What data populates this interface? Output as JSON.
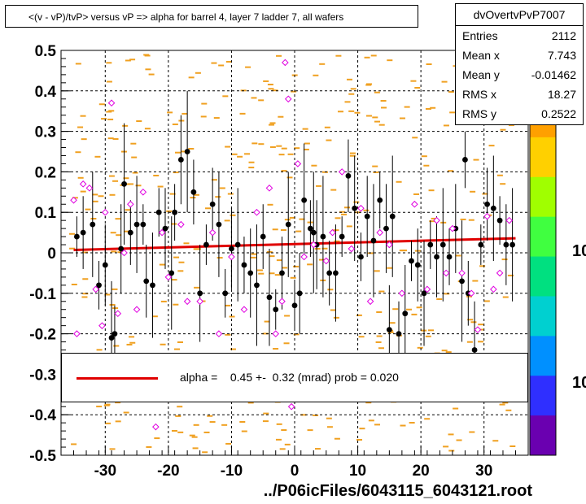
{
  "title": "<(v - vP)/tvP> versus   vP => alpha for barrel 4, layer 7 ladder 7, all wafers",
  "stats": {
    "name": "dvOvertvPvP7007",
    "rows": [
      {
        "key": "Entries",
        "value": "2112"
      },
      {
        "key": "Mean x",
        "value": "7.743"
      },
      {
        "key": "Mean y",
        "value": "-0.01462"
      },
      {
        "key": "RMS x",
        "value": "18.27"
      },
      {
        "key": "RMS y",
        "value": "0.2522"
      }
    ]
  },
  "fit": {
    "text": "alpha =    0.45 +-  0.32 (mrad) prob = 0.020",
    "line_color": "#e00000"
  },
  "footer": "../P06icFiles/6043115_6043121.root",
  "palette_labels": [
    "10",
    "10"
  ],
  "colors": {
    "hist": "#f0a020",
    "profile": "#000000",
    "open_marker": "#e000e0",
    "fit": "#e00000",
    "grid": "#000000"
  },
  "chart_data": {
    "type": "scatter",
    "xlim": [
      -37,
      37
    ],
    "ylim": [
      -0.5,
      0.5
    ],
    "x_ticks": [
      -30,
      -20,
      -10,
      0,
      10,
      20,
      30
    ],
    "x_tick_labels": [
      "-30",
      "-20",
      "-10",
      "0",
      "10",
      "20",
      "30"
    ],
    "y_ticks": [
      0.5,
      0.4,
      0.3,
      0.2,
      0.1,
      0,
      -0.1,
      -0.2,
      -0.3,
      -0.4,
      -0.5
    ],
    "y_tick_labels": [
      "0.5",
      "0.4",
      "0.3",
      "0.2",
      "0.1",
      "0",
      "-0.1",
      "-0.2",
      "-0.3",
      "-0.4",
      "-0.5"
    ],
    "grid": true,
    "fit_line": {
      "x": [
        -35,
        35
      ],
      "y": [
        0.007,
        0.036
      ]
    },
    "series": [
      {
        "marker": "filled-circle",
        "points": [
          [
            -34.5,
            0.04
          ],
          [
            -33.5,
            0.05
          ],
          [
            -32,
            0.07
          ],
          [
            -31,
            -0.08
          ],
          [
            -30,
            -0.03
          ],
          [
            -29,
            -0.21
          ],
          [
            -28.5,
            -0.2
          ],
          [
            -27.5,
            0.01
          ],
          [
            -27,
            0.17
          ],
          [
            -26,
            0.05
          ],
          [
            -25,
            0.07
          ],
          [
            -24,
            0.07
          ],
          [
            -23.5,
            -0.07
          ],
          [
            -22.5,
            -0.08
          ],
          [
            -21.5,
            0.1
          ],
          [
            -20.5,
            0.06
          ],
          [
            -19.5,
            -0.05
          ],
          [
            -19,
            0.1
          ],
          [
            -18,
            0.23
          ],
          [
            -17,
            0.25
          ],
          [
            -16,
            0.15
          ],
          [
            -15,
            -0.1
          ],
          [
            -14,
            0.02
          ],
          [
            -13,
            0.12
          ],
          [
            -12,
            0.07
          ],
          [
            -11,
            -0.1
          ],
          [
            -10,
            0.01
          ],
          [
            -9,
            0.02
          ],
          [
            -8,
            -0.03
          ],
          [
            -7,
            -0.05
          ],
          [
            -6,
            -0.08
          ],
          [
            -5,
            0.04
          ],
          [
            -4,
            -0.11
          ],
          [
            -3,
            -0.14
          ],
          [
            -2,
            -0.05
          ],
          [
            -1,
            0.07
          ],
          [
            0,
            -0.13
          ],
          [
            0.8,
            -0.1
          ],
          [
            1.5,
            0.13
          ],
          [
            2.5,
            0.06
          ],
          [
            3.5,
            0.02
          ],
          [
            4.5,
            0.04
          ],
          [
            5.5,
            -0.05
          ],
          [
            6.5,
            -0.05
          ],
          [
            7.5,
            0.04
          ],
          [
            8.5,
            0.19
          ],
          [
            9.5,
            0.11
          ],
          [
            10.5,
            -0.01
          ],
          [
            11.5,
            0.09
          ],
          [
            12.5,
            0.03
          ],
          [
            13.5,
            0.13
          ],
          [
            14.5,
            0.06
          ],
          [
            15.5,
            0.09
          ],
          [
            16.5,
            -0.2
          ],
          [
            17.5,
            -0.15
          ],
          [
            18.5,
            -0.02
          ],
          [
            19.5,
            -0.03
          ],
          [
            20.5,
            -0.1
          ],
          [
            21.5,
            0.02
          ],
          [
            22.5,
            -0.01
          ],
          [
            23.5,
            0.02
          ],
          [
            24.5,
            -0.01
          ],
          [
            25.5,
            0.06
          ],
          [
            26.5,
            -0.07
          ],
          [
            27.5,
            -0.1
          ],
          [
            28.5,
            -0.24
          ],
          [
            29.5,
            0.02
          ],
          [
            30.5,
            0.12
          ],
          [
            31.5,
            0.11
          ],
          [
            32.5,
            0.08
          ],
          [
            33.5,
            0.02
          ],
          [
            34.5,
            0.02
          ],
          [
            27,
            0.23
          ],
          [
            15,
            -0.19
          ],
          [
            3,
            0.05
          ]
        ]
      },
      {
        "marker": "open-diamond",
        "points": [
          [
            -35,
            0.13
          ],
          [
            -34.5,
            -0.2
          ],
          [
            -33.5,
            0.17
          ],
          [
            -32.5,
            0.16
          ],
          [
            -31.5,
            -0.09
          ],
          [
            -30.5,
            -0.18
          ],
          [
            -30,
            0.1
          ],
          [
            -29,
            0.37
          ],
          [
            -28,
            -0.15
          ],
          [
            -27,
            0.0
          ],
          [
            -26,
            0.12
          ],
          [
            -25,
            -0.14
          ],
          [
            -24,
            0.15
          ],
          [
            -22,
            -0.43
          ],
          [
            -21,
            0.05
          ],
          [
            -20,
            -0.06
          ],
          [
            -18,
            0.07
          ],
          [
            -17,
            -0.12
          ],
          [
            -15,
            -0.12
          ],
          [
            -13,
            0.05
          ],
          [
            -12,
            -0.2
          ],
          [
            -10,
            -0.01
          ],
          [
            -8,
            -0.14
          ],
          [
            -6,
            0.1
          ],
          [
            -4,
            0.16
          ],
          [
            -3,
            -0.2
          ],
          [
            -2,
            -0.12
          ],
          [
            -1.5,
            0.47
          ],
          [
            -1,
            0.38
          ],
          [
            -0.5,
            -0.38
          ],
          [
            0.5,
            0.22
          ],
          [
            1.5,
            -0.01
          ],
          [
            3,
            0.02
          ],
          [
            5,
            -0.02
          ],
          [
            6,
            0.05
          ],
          [
            7.5,
            0.2
          ],
          [
            9,
            0.01
          ],
          [
            10.5,
            0.11
          ],
          [
            12,
            -0.12
          ],
          [
            13.5,
            0.05
          ],
          [
            15,
            0.02
          ],
          [
            17,
            -0.1
          ],
          [
            19,
            0.12
          ],
          [
            21,
            -0.09
          ],
          [
            22.5,
            0.08
          ],
          [
            24,
            -0.05
          ],
          [
            25,
            0.06
          ],
          [
            26.5,
            -0.05
          ],
          [
            28,
            -0.1
          ],
          [
            29,
            -0.19
          ],
          [
            30.5,
            0.09
          ],
          [
            31.5,
            -0.09
          ],
          [
            32.5,
            -0.05
          ],
          [
            34,
            0.08
          ]
        ]
      }
    ],
    "hist_bins_note": "",
    "palette": [
      "#6a00b0",
      "#2f2fff",
      "#0090ff",
      "#00d0d0",
      "#00e080",
      "#40ff40",
      "#a0ff00",
      "#ffd000",
      "#ffa000"
    ]
  }
}
